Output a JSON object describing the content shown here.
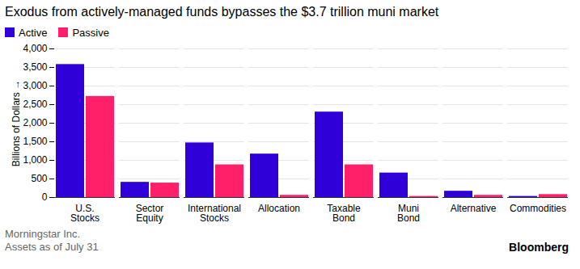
{
  "chart_data": {
    "type": "bar",
    "title": "Exodus from actively-managed funds bypasses the $3.7 trillion muni market",
    "ylabel": "Billions of Dollars",
    "categories": [
      "U.S. Stocks",
      "Sector Equity",
      "International Stocks",
      "Allocation",
      "Taxable Bond",
      "Muni Bond",
      "Alternative",
      "Commodities"
    ],
    "series": [
      {
        "name": "Active",
        "color": "#2f00d8",
        "values": [
          3580,
          410,
          1470,
          1170,
          2300,
          660,
          170,
          30
        ]
      },
      {
        "name": "Passive",
        "color": "#ff2069",
        "values": [
          2720,
          390,
          880,
          60,
          880,
          30,
          60,
          80
        ]
      }
    ],
    "ylim": [
      0,
      4000
    ],
    "yticks": [
      0,
      500,
      {
        "value": 1000,
        "label": "1,000"
      },
      {
        "value": 1500,
        "label": "1,500"
      },
      {
        "value": 2000,
        "label": "2,000"
      },
      {
        "value": 2500,
        "label": "2,500"
      },
      {
        "value": 3000,
        "label": "3,000"
      },
      {
        "value": 3500,
        "label": "3,500"
      },
      {
        "value": 4000,
        "label": "4,000"
      }
    ],
    "grid": true,
    "legend": "top-left",
    "source": [
      "Morningstar Inc.",
      "Assets as of July 31"
    ],
    "brand": "Bloomberg"
  }
}
